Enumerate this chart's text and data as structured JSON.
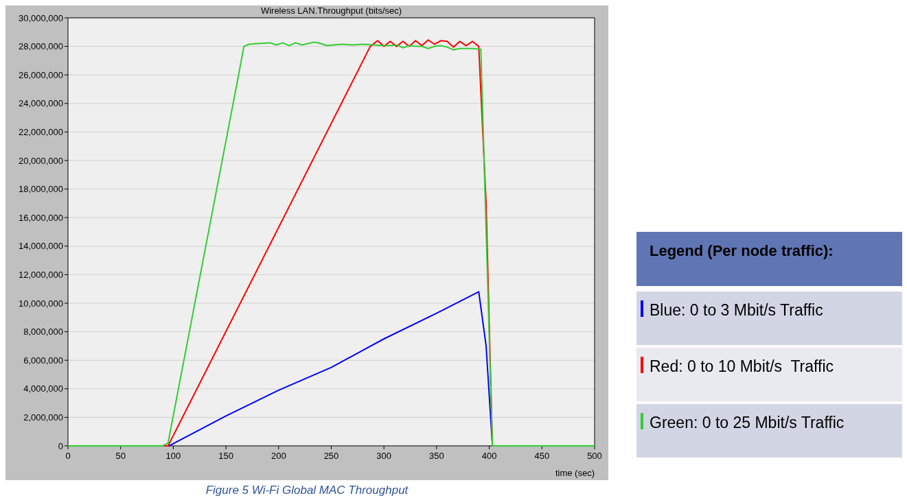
{
  "chart_data": {
    "type": "line",
    "title": "Wireless LAN.Throughput (bits/sec)",
    "xlabel": "time (sec)",
    "legend_title": "Legend (Per node traffic):",
    "legend": "right",
    "grid": "y",
    "line_style": "solid",
    "marker": "none",
    "xlim": [
      0,
      500
    ],
    "xticks": [
      0,
      50,
      100,
      150,
      200,
      250,
      300,
      350,
      400,
      450,
      500
    ],
    "ylim": [
      0,
      30000000
    ],
    "yticks": [
      {
        "value": 0,
        "label": "0"
      },
      {
        "value": 2000000,
        "label": "2,000,000"
      },
      {
        "value": 4000000,
        "label": "4,000,000"
      },
      {
        "value": 6000000,
        "label": "6,000,000"
      },
      {
        "value": 8000000,
        "label": "8,000,000"
      },
      {
        "value": 10000000,
        "label": "10,000,000"
      },
      {
        "value": 12000000,
        "label": "12,000,000"
      },
      {
        "value": 14000000,
        "label": "14,000,000"
      },
      {
        "value": 16000000,
        "label": "16,000,000"
      },
      {
        "value": 18000000,
        "label": "18,000,000"
      },
      {
        "value": 20000000,
        "label": "20,000,000"
      },
      {
        "value": 22000000,
        "label": "22,000,000"
      },
      {
        "value": 24000000,
        "label": "24,000,000"
      },
      {
        "value": 26000000,
        "label": "26,000,000"
      },
      {
        "value": 28000000,
        "label": "28,000,000"
      },
      {
        "value": 30000000,
        "label": "30,000,000"
      }
    ],
    "series": [
      {
        "name": "Blue: 0 to 3 Mbit/s Traffic",
        "color": "#0000ff",
        "x": [
          0,
          90,
          96,
          150,
          200,
          250,
          300,
          350,
          390,
          397,
          403,
          500
        ],
        "values": [
          0,
          0,
          0,
          2100000,
          3900000,
          5500000,
          7500000,
          9300000,
          10800000,
          7000000,
          0,
          0
        ]
      },
      {
        "name": "Red: 0 to 10 Mbit/s  Traffic",
        "color": "#ff0000",
        "x": [
          0,
          90,
          95,
          287,
          294,
          300,
          306,
          312,
          318,
          324,
          330,
          336,
          342,
          348,
          354,
          360,
          366,
          372,
          378,
          384,
          390,
          397,
          403,
          500
        ],
        "values": [
          0,
          0,
          0,
          28000000,
          28400000,
          28000000,
          28350000,
          28000000,
          28350000,
          28000000,
          28400000,
          28050000,
          28450000,
          28150000,
          28400000,
          28350000,
          27950000,
          28350000,
          28050000,
          28350000,
          28000000,
          17000000,
          0,
          0
        ]
      },
      {
        "name": "Green: 0 to 25 Mbit/s Traffic",
        "color": "#33cc33",
        "x": [
          0,
          90,
          95,
          162,
          167,
          172,
          180,
          192,
          198,
          204,
          210,
          216,
          222,
          228,
          234,
          240,
          246,
          252,
          260,
          270,
          280,
          290,
          300,
          306,
          312,
          318,
          324,
          330,
          336,
          342,
          348,
          354,
          360,
          366,
          372,
          378,
          384,
          390,
          392,
          403,
          500
        ],
        "values": [
          0,
          0,
          200000,
          26000000,
          28000000,
          28150000,
          28200000,
          28250000,
          28100000,
          28250000,
          28050000,
          28250000,
          28100000,
          28200000,
          28300000,
          28200000,
          28050000,
          28100000,
          28150000,
          28100000,
          28150000,
          28100000,
          28050000,
          28050000,
          28100000,
          27900000,
          28050000,
          28000000,
          28000000,
          27850000,
          28000000,
          28050000,
          27950000,
          27750000,
          27850000,
          27850000,
          27850000,
          27800000,
          27800000,
          0,
          0
        ]
      }
    ],
    "annotations": [
      "Figure 5 Wi-Fi Global MAC Throughput"
    ]
  }
}
